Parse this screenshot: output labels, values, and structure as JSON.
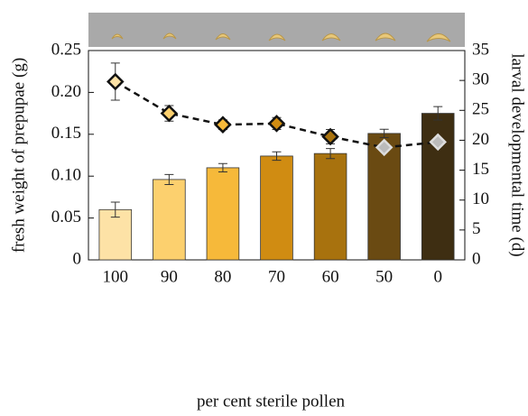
{
  "chart_data": {
    "type": "bar",
    "categories": [
      "100",
      "90",
      "80",
      "70",
      "60",
      "50",
      "0"
    ],
    "series": [
      {
        "type": "bar",
        "values": [
          0.06,
          0.096,
          0.11,
          0.124,
          0.127,
          0.151,
          0.175
        ],
        "errors": [
          0.009,
          0.006,
          0.005,
          0.005,
          0.006,
          0.005,
          0.008
        ],
        "colors": [
          "#fde2a6",
          "#fcd06e",
          "#f6b93a",
          "#d08c12",
          "#a8720e",
          "#6a4a12",
          "#3e2e12"
        ]
      },
      {
        "type": "line",
        "axis": "y2",
        "values": [
          29.8,
          24.5,
          22.6,
          22.8,
          20.6,
          18.8,
          19.7
        ],
        "errors": [
          3.1,
          1.3,
          0.8,
          1.0,
          1.2,
          null,
          null
        ],
        "color": "#111111",
        "marker_colors": [
          "#fde2a6",
          "#fcd06e",
          "#f6b93a",
          "#d08c12",
          "#a8720e",
          "#bbbbbb",
          "#bbbbbb"
        ],
        "marker_edges": [
          "#111111",
          "#111111",
          "#111111",
          "#111111",
          "#111111",
          "#dddddd",
          "#dddddd"
        ]
      }
    ],
    "xlabel": "per cent sterile pollen",
    "ylabel": "fresh weight of prepupae (g)",
    "y2label": "larval developmental time (d)",
    "ylim": [
      0,
      0.25
    ],
    "yticks": [
      0,
      0.05,
      {
        "value": 0.1,
        "label": "0.10"
      },
      0.15,
      {
        "value": 0.2,
        "label": "0.20"
      },
      0.25
    ],
    "y2lim": [
      0,
      35
    ],
    "y2ticks": [
      0,
      5,
      10,
      15,
      20,
      25,
      30,
      35
    ]
  }
}
